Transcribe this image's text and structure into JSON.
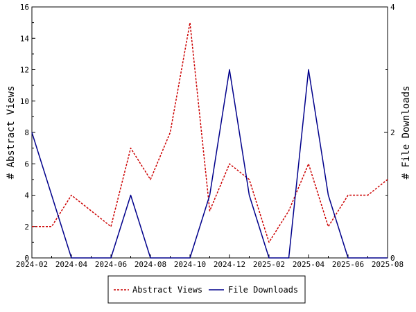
{
  "chart_data": {
    "type": "line",
    "x": [
      "2024-02",
      "2024-03",
      "2024-04",
      "2024-05",
      "2024-06",
      "2024-07",
      "2024-08",
      "2024-09",
      "2024-10",
      "2024-11",
      "2024-12",
      "2025-01",
      "2025-02",
      "2025-03",
      "2025-04",
      "2025-05",
      "2025-06",
      "2025-07",
      "2025-08"
    ],
    "x_ticks": [
      "2024-02",
      "2024-04",
      "2024-06",
      "2024-08",
      "2024-10",
      "2024-12",
      "2025-02",
      "2025-04",
      "2025-06",
      "2025-08"
    ],
    "ylabel_left": "# Abstract Views",
    "ylabel_right": "# File Downloads",
    "ylim_left": [
      0,
      16
    ],
    "ylim_right": [
      0,
      4
    ],
    "yticks_left": [
      0,
      2,
      4,
      6,
      8,
      10,
      12,
      14,
      16
    ],
    "yticks_right": [
      0,
      2,
      4
    ],
    "legend_position": "bottom-center",
    "series": [
      {
        "name": "Abstract Views",
        "axis": "left",
        "color": "#cc0000",
        "style": "dashed",
        "values": [
          2,
          2,
          4,
          3,
          2,
          7,
          5,
          8,
          15,
          3,
          6,
          5,
          1,
          3,
          6,
          2,
          4,
          4,
          5
        ]
      },
      {
        "name": "File Downloads",
        "axis": "right",
        "color": "#00008b",
        "style": "solid",
        "values": [
          2,
          1,
          0,
          0,
          0,
          1,
          0,
          0,
          0,
          1,
          3,
          1,
          0,
          0,
          3,
          1,
          0,
          0,
          0
        ]
      }
    ]
  }
}
